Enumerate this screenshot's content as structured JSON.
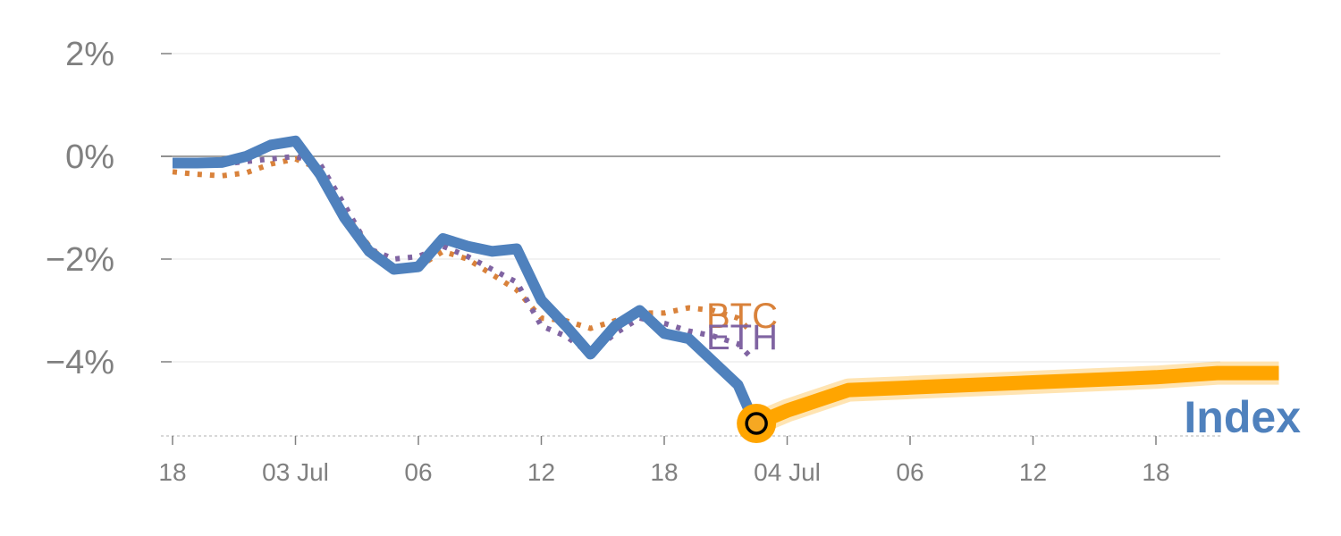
{
  "chart_data": {
    "type": "line",
    "title": "",
    "xlabel": "",
    "ylabel": "",
    "ylim": [
      -5.5,
      2.3
    ],
    "y_ticks": [
      {
        "value": 2,
        "label": "2%"
      },
      {
        "value": 0,
        "label": "0%"
      },
      {
        "value": -2,
        "label": "−2%"
      },
      {
        "value": -4,
        "label": "−4%"
      }
    ],
    "x_tick_labels": [
      "18",
      "03 Jul",
      "06",
      "12",
      "18",
      "04 Jul",
      "06",
      "12",
      "18"
    ],
    "grid": true,
    "series": [
      {
        "name": "BTC",
        "label": "BTC",
        "style": "dotted",
        "color": "#D9823B",
        "points": [
          [
            0,
            -0.3
          ],
          [
            0.2,
            -0.35
          ],
          [
            0.4,
            -0.38
          ],
          [
            0.6,
            -0.32
          ],
          [
            0.8,
            -0.15
          ],
          [
            1.0,
            -0.05
          ],
          [
            1.2,
            -0.25
          ],
          [
            1.4,
            -1.1
          ],
          [
            1.6,
            -1.75
          ],
          [
            1.8,
            -2.2
          ],
          [
            2.0,
            -2.15
          ],
          [
            2.2,
            -1.85
          ],
          [
            2.4,
            -2.0
          ],
          [
            2.6,
            -2.3
          ],
          [
            2.8,
            -2.6
          ],
          [
            3.0,
            -3.15
          ],
          [
            3.2,
            -3.2
          ],
          [
            3.4,
            -3.35
          ],
          [
            3.6,
            -3.2
          ],
          [
            3.8,
            -3.05
          ],
          [
            4.0,
            -3.05
          ],
          [
            4.2,
            -2.95
          ],
          [
            4.4,
            -3.0
          ],
          [
            4.6,
            -3.15
          ],
          [
            4.7,
            -3.4
          ]
        ]
      },
      {
        "name": "ETH",
        "label": "ETH",
        "style": "dotted",
        "color": "#8064A2",
        "points": [
          [
            0,
            -0.15
          ],
          [
            0.2,
            -0.15
          ],
          [
            0.4,
            -0.15
          ],
          [
            0.6,
            -0.1
          ],
          [
            0.8,
            -0.05
          ],
          [
            1.0,
            0.0
          ],
          [
            1.2,
            -0.15
          ],
          [
            1.4,
            -0.95
          ],
          [
            1.6,
            -1.8
          ],
          [
            1.8,
            -2.0
          ],
          [
            2.0,
            -1.95
          ],
          [
            2.2,
            -1.75
          ],
          [
            2.4,
            -1.95
          ],
          [
            2.6,
            -2.2
          ],
          [
            2.8,
            -2.45
          ],
          [
            3.0,
            -3.3
          ],
          [
            3.2,
            -3.5
          ],
          [
            3.4,
            -3.85
          ],
          [
            3.6,
            -3.45
          ],
          [
            3.8,
            -3.15
          ],
          [
            4.0,
            -3.25
          ],
          [
            4.2,
            -3.4
          ],
          [
            4.4,
            -3.5
          ],
          [
            4.6,
            -3.65
          ],
          [
            4.7,
            -3.9
          ]
        ]
      },
      {
        "name": "Index",
        "label": "Index",
        "style": "solid",
        "color": "#4F81BD",
        "points": [
          [
            0,
            -0.13
          ],
          [
            0.2,
            -0.13
          ],
          [
            0.4,
            -0.12
          ],
          [
            0.6,
            0.0
          ],
          [
            0.8,
            0.22
          ],
          [
            1.0,
            0.3
          ],
          [
            1.2,
            -0.35
          ],
          [
            1.4,
            -1.2
          ],
          [
            1.6,
            -1.85
          ],
          [
            1.8,
            -2.2
          ],
          [
            2.0,
            -2.15
          ],
          [
            2.2,
            -1.6
          ],
          [
            2.4,
            -1.75
          ],
          [
            2.6,
            -1.85
          ],
          [
            2.8,
            -1.8
          ],
          [
            3.0,
            -2.8
          ],
          [
            3.2,
            -3.3
          ],
          [
            3.4,
            -3.85
          ],
          [
            3.6,
            -3.3
          ],
          [
            3.8,
            -3.0
          ],
          [
            4.0,
            -3.45
          ],
          [
            4.2,
            -3.55
          ],
          [
            4.4,
            -4.0
          ],
          [
            4.6,
            -4.45
          ],
          [
            4.7,
            -5.0
          ],
          [
            4.75,
            -5.2
          ]
        ]
      },
      {
        "name": "Projection",
        "style": "band",
        "color": "#FFA500",
        "points": [
          [
            4.75,
            -5.2
          ],
          [
            5.0,
            -4.95
          ],
          [
            5.25,
            -4.75
          ],
          [
            5.5,
            -4.55
          ],
          [
            6.0,
            -4.5
          ],
          [
            7.0,
            -4.4
          ],
          [
            8.0,
            -4.3
          ],
          [
            8.5,
            -4.22
          ],
          [
            9.0,
            -4.22
          ]
        ]
      }
    ],
    "marker": {
      "name": "current-value-marker",
      "x": 4.75,
      "y": -5.2
    },
    "colors": {
      "axis_text": "#808080",
      "gridline": "#E6E6E6",
      "zero_line": "#808080",
      "marker_fill": "#FFA500",
      "marker_inner": "#F6A822",
      "marker_stroke": "#000000"
    }
  }
}
